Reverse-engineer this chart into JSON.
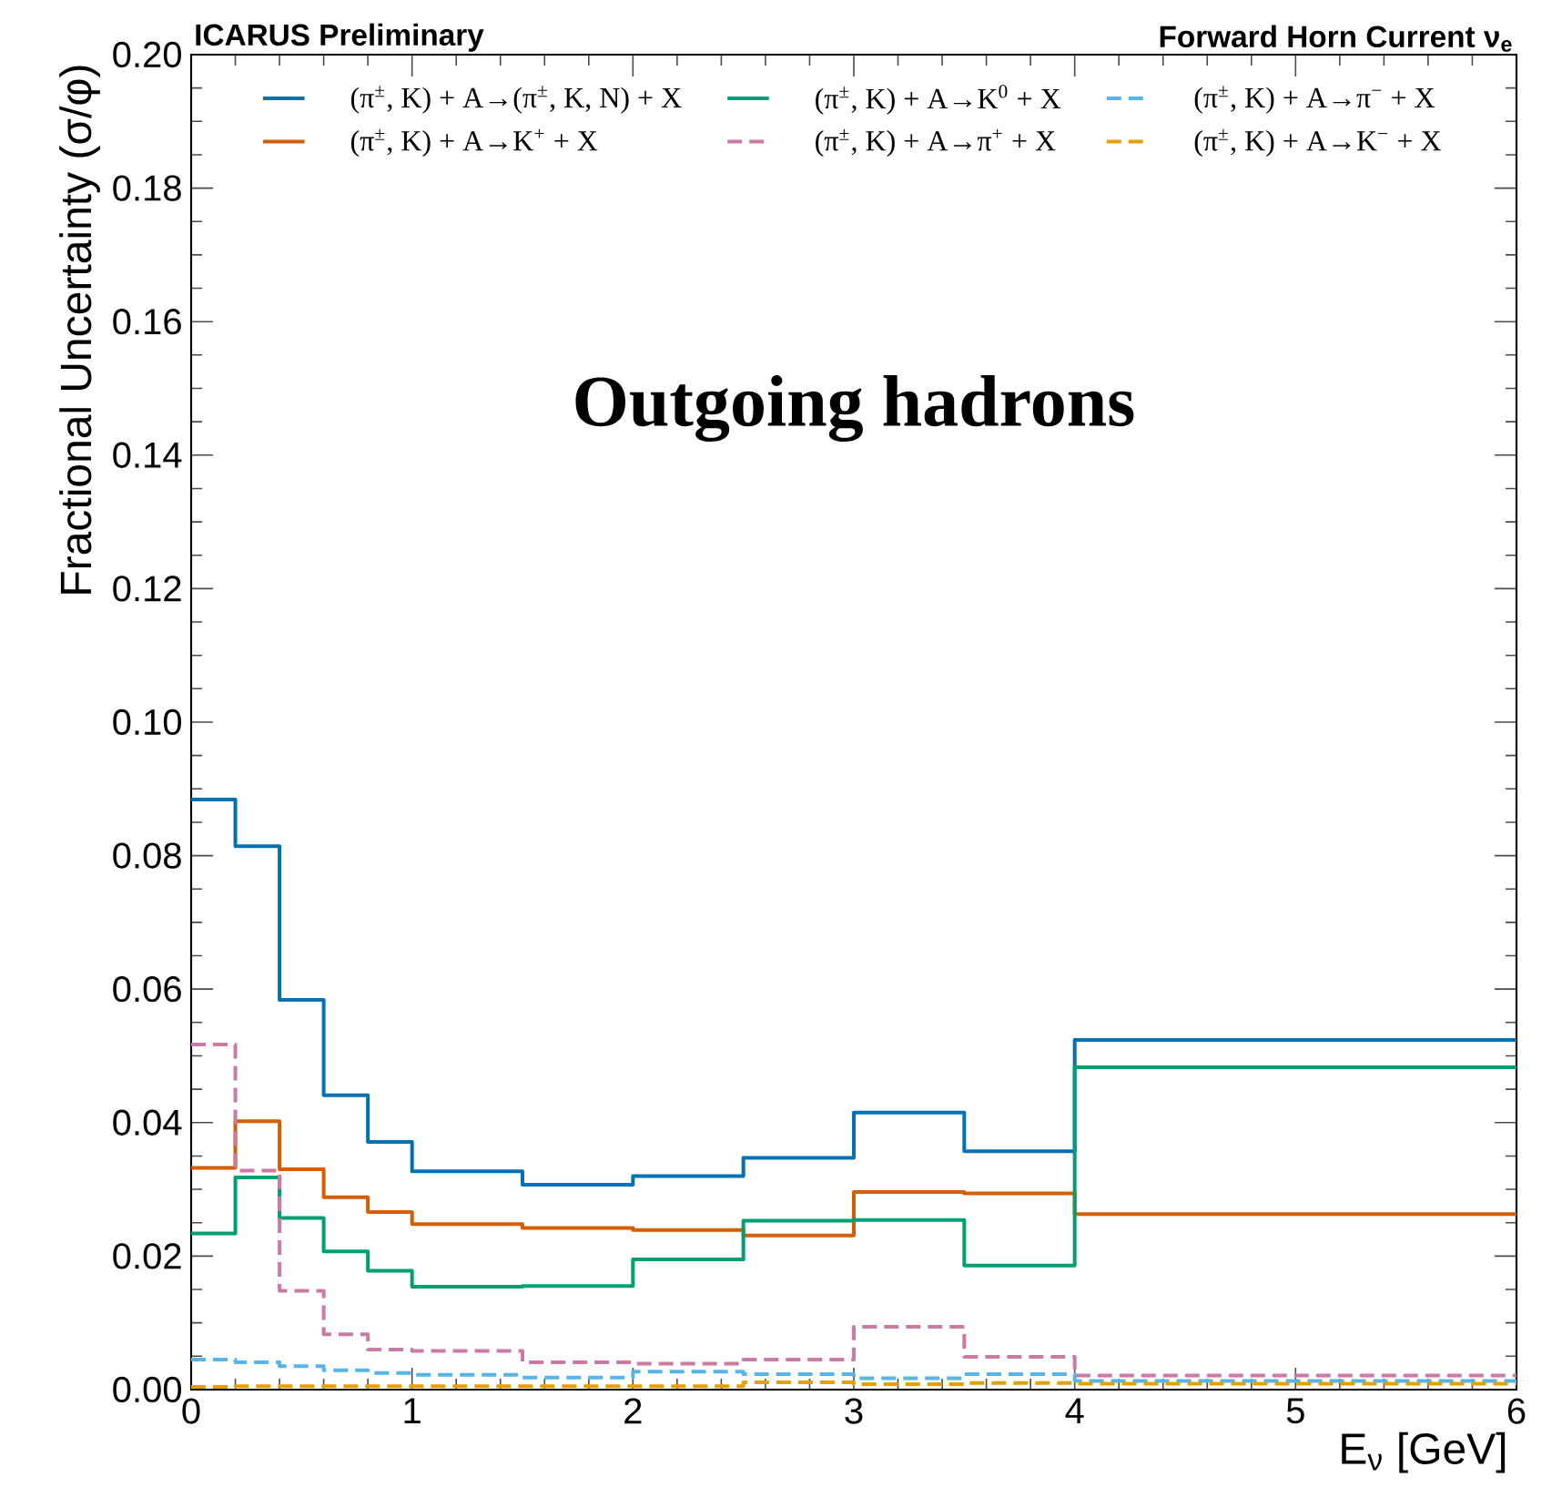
{
  "chart_data": {
    "type": "histogram",
    "title": "ICARUS Preliminary",
    "subtitle": "Forward Horn Current ν$_{e}$",
    "xlabel": "E$_{ν}$ [GeV]",
    "ylabel": "Fractional Uncertainty (σ/φ)",
    "annotations": [
      "Outgoing hadrons"
    ],
    "bins": [
      0,
      0.2,
      0.4,
      0.6,
      0.8,
      1,
      1.5,
      2,
      2.5,
      3,
      3.5,
      4,
      6
    ],
    "series": [
      {
        "name": "(π$^{±}$, K) + A→(π$^{±}$, K, N) + X",
        "color": "#0072b2",
        "values": [
          0.0884,
          0.0814,
          0.0584,
          0.0441,
          0.0371,
          0.0327,
          0.0307,
          0.032,
          0.0347,
          0.0415,
          0.0357,
          0.0524
        ]
      },
      {
        "name": "(π$^{±}$, K) + A→K$^{+}$ + X",
        "color": "#d55e00",
        "values": [
          0.0332,
          0.0402,
          0.033,
          0.0288,
          0.0266,
          0.0248,
          0.0242,
          0.0239,
          0.0231,
          0.0296,
          0.0294,
          0.0263
        ]
      },
      {
        "name": "(π$^{±}$, K) + A→K$^{0}$ + X",
        "color": "#009e73",
        "values": [
          0.0234,
          0.0318,
          0.0257,
          0.0207,
          0.0178,
          0.0154,
          0.0155,
          0.0195,
          0.0253,
          0.0254,
          0.0186,
          0.0483
        ]
      },
      {
        "name": "(π$^{±}$, K) + A→π$^{+}$ + X",
        "color": "#cc79a7",
        "line_style": "dashed",
        "values": [
          0.0517,
          0.0328,
          0.0148,
          0.0083,
          0.006,
          0.0058,
          0.0041,
          0.0039,
          0.0045,
          0.0094,
          0.0049,
          0.0021
        ]
      },
      {
        "name": "(π$^{±}$, K) + A→π$^{−}$ + X",
        "color": "#56b4e9",
        "line_style": "dashed",
        "values": [
          0.0045,
          0.0041,
          0.0035,
          0.0029,
          0.0025,
          0.0022,
          0.0018,
          0.0027,
          0.0023,
          0.0017,
          0.0023,
          0.0013
        ]
      },
      {
        "name": "(π$^{±}$, K) + A→K$^{−}$ + X",
        "color": "#e69f00",
        "line_style": "dashed",
        "values": [
          0.0004,
          0.0005,
          0.0005,
          0.0005,
          0.0005,
          0.0005,
          0.0005,
          0.0005,
          0.0011,
          0.0008,
          0.001,
          0.0009
        ]
      }
    ],
    "xlim": [
      0,
      6
    ],
    "ylim": [
      0,
      0.2
    ],
    "xticks": [
      0,
      1,
      2,
      3,
      4,
      5,
      6
    ],
    "yticks": [
      {
        "value": 0,
        "label": "0.00"
      },
      {
        "value": 0.02,
        "label": "0.02"
      },
      {
        "value": 0.04,
        "label": "0.04"
      },
      {
        "value": 0.06,
        "label": "0.06"
      },
      {
        "value": 0.08,
        "label": "0.08"
      },
      {
        "value": 0.1,
        "label": "0.10"
      },
      {
        "value": 0.12,
        "label": "0.12"
      },
      {
        "value": 0.14,
        "label": "0.14"
      },
      {
        "value": 0.16,
        "label": "0.16"
      },
      {
        "value": 0.18,
        "label": "0.18"
      },
      {
        "value": 0.2,
        "label": "0.20"
      }
    ],
    "legend": "top",
    "grid": false
  }
}
